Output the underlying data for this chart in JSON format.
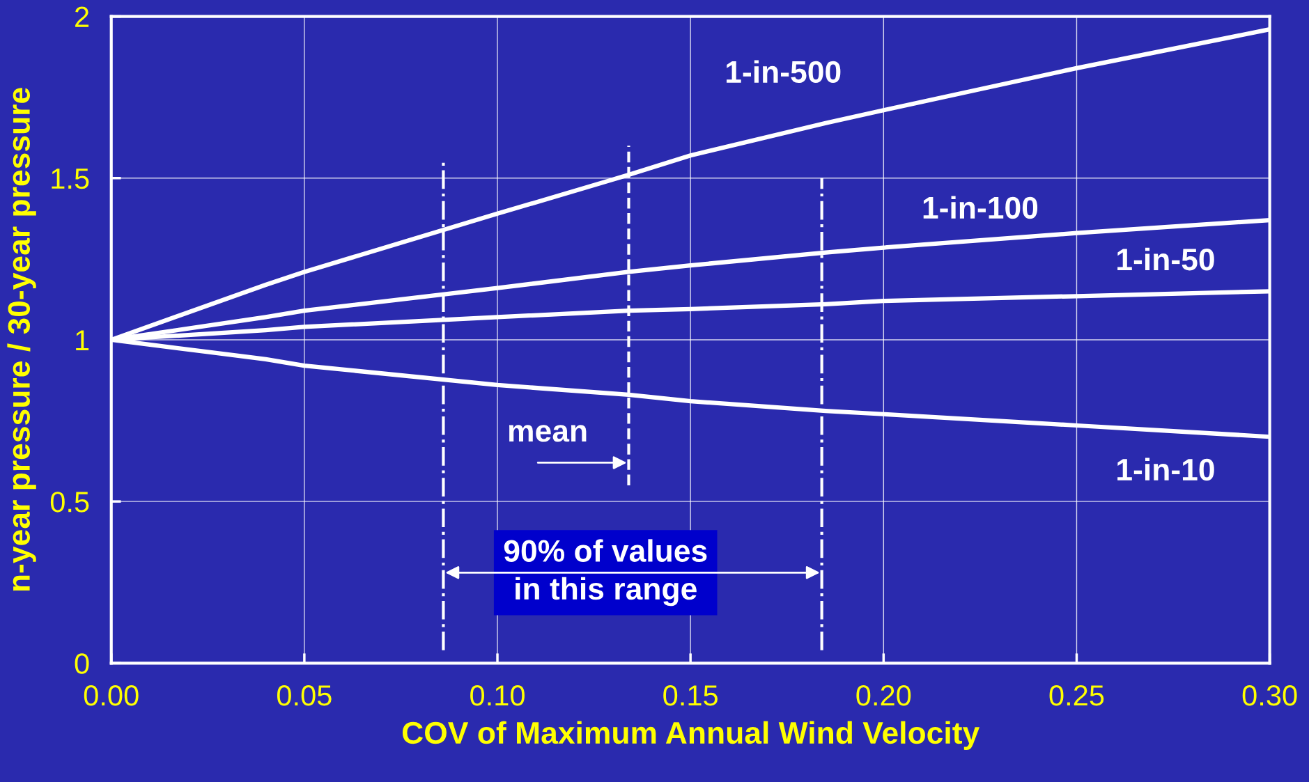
{
  "chart_data": {
    "type": "line",
    "xlabel": "COV of Maximum Annual Wind Velocity",
    "ylabel": "n-year pressure / 30-year pressure",
    "x": [
      0,
      0.04,
      0.05,
      0.1,
      0.134,
      0.15,
      0.185,
      0.2,
      0.25,
      0.3
    ],
    "series": [
      {
        "name": "1-in-500",
        "color": "#ffffff",
        "values": [
          1,
          1.17,
          1.21,
          1.39,
          1.51,
          1.57,
          1.67,
          1.71,
          1.84,
          1.96
        ]
      },
      {
        "name": "1-in-100",
        "color": "#ffffff",
        "values": [
          1,
          1.07,
          1.09,
          1.16,
          1.21,
          1.23,
          1.27,
          1.285,
          1.33,
          1.37
        ]
      },
      {
        "name": "1-in-50",
        "color": "#ffffff",
        "values": [
          1,
          1.03,
          1.04,
          1.07,
          1.09,
          1.095,
          1.11,
          1.12,
          1.135,
          1.15
        ]
      },
      {
        "name": "1-in-10",
        "color": "#ffffff",
        "values": [
          1,
          0.94,
          0.92,
          0.86,
          0.83,
          0.81,
          0.78,
          0.77,
          0.735,
          0.7
        ]
      }
    ],
    "xlim": [
      0,
      0.3
    ],
    "ylim": [
      0,
      2
    ],
    "xticks": [
      {
        "value": 0,
        "label": "0.00"
      },
      {
        "value": 0.05,
        "label": "0.05"
      },
      {
        "value": 0.1,
        "label": "0.10"
      },
      {
        "value": 0.15,
        "label": "0.15"
      },
      {
        "value": 0.2,
        "label": "0.20"
      },
      {
        "value": 0.25,
        "label": "0.25"
      },
      {
        "value": 0.3,
        "label": "0.30"
      }
    ],
    "yticks": [
      0,
      0.5,
      1,
      1.5,
      2
    ],
    "grid": true,
    "marker": "none",
    "line_style": "solid",
    "legend": false,
    "ref_lines": [
      {
        "axis": "x",
        "value": 0.086,
        "line_style": "dashdot",
        "color": "#ffffff"
      },
      {
        "axis": "x",
        "value": 0.134,
        "line_style": "dashed",
        "color": "#ffffff",
        "label": "mean"
      },
      {
        "axis": "x",
        "value": 0.184,
        "line_style": "dashdot",
        "color": "#ffffff"
      }
    ],
    "annotations": [
      "90% of values\nin this range"
    ]
  }
}
